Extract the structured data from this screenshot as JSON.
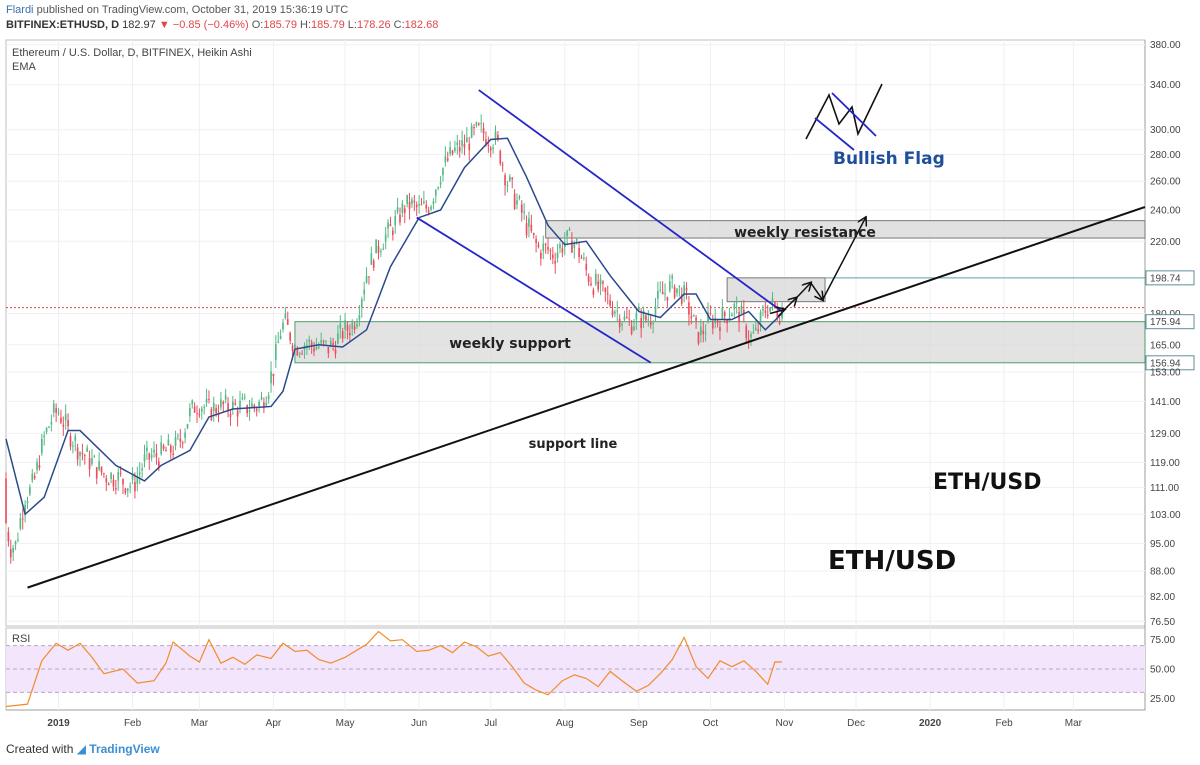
{
  "header": {
    "author": "Flardi",
    "published": "published on TradingView.com, October 31, 2019 15:36:19 UTC",
    "symbol": "BITFINEX:ETHUSD, D",
    "last": "182.97",
    "change": "−0.85 (−0.46%)",
    "o_label": "O:",
    "o_val": "185.79",
    "h_label": "H:",
    "h_val": "185.79",
    "l_label": "L:",
    "l_val": "178.26",
    "c_label": "C:",
    "c_val": "182.68"
  },
  "instrument": {
    "title": "Ethereum / U.S. Dollar, D, BITFINEX, Heikin Ashi",
    "indicator": "EMA"
  },
  "rsi_label": "RSI",
  "annotations": {
    "bullish_flag": "Bullish Flag",
    "weekly_resistance": "weekly resistance",
    "weekly_support": "weekly support",
    "support_line": "support line",
    "ethusd_1": "ETH/USD",
    "ethusd_2": "ETH/USD"
  },
  "footer": {
    "created_with": "Created with",
    "brand": "TradingView"
  },
  "colors": {
    "up": "#53b987",
    "down": "#eb4d5c",
    "ema": "#2b4a8c",
    "channel": "#2626c8",
    "trend": "#111111",
    "rsi": "#f28c28",
    "rsi_band": "#f3e5fb",
    "zone": "#d9d9d9",
    "price_line": "#e0474c"
  },
  "chart_data": [
    {
      "type": "candlestick",
      "title": "Ethereum / U.S. Dollar, D, BITFINEX, Heikin Ashi",
      "yscale": "log",
      "ylim": [
        75.5,
        385
      ],
      "y_ticks": [
        "380.00",
        "340.00",
        "300.00",
        "280.00",
        "260.00",
        "240.00",
        "220.00",
        "198.74",
        "180.00",
        "175.94",
        "165.00",
        "156.94",
        "153.00",
        "141.00",
        "129.00",
        "119.00",
        "111.00",
        "103.00",
        "95.00",
        "88.00",
        "82.00",
        "76.50"
      ],
      "x_ticks": [
        "2019",
        "Feb",
        "Mar",
        "Apr",
        "May",
        "Jun",
        "Jul",
        "Aug",
        "Sep",
        "Oct",
        "Nov",
        "Dec",
        "2020",
        "Feb",
        "Mar"
      ],
      "x_range": [
        "2018-12-10",
        "2020-03-31"
      ],
      "price_level": 182.97,
      "series": [
        {
          "name": "EMA",
          "kind": "line",
          "points": [
            [
              "2018-12-10",
              127
            ],
            [
              "2018-12-18",
              103
            ],
            [
              "2018-12-26",
              108
            ],
            [
              "2019-01-05",
              130
            ],
            [
              "2019-01-10",
              130
            ],
            [
              "2019-01-25",
              118
            ],
            [
              "2019-02-06",
              113
            ],
            [
              "2019-02-13",
              118
            ],
            [
              "2019-02-25",
              123
            ],
            [
              "2019-03-05",
              135
            ],
            [
              "2019-03-15",
              138
            ],
            [
              "2019-03-31",
              139
            ],
            [
              "2019-04-05",
              145
            ],
            [
              "2019-04-10",
              163
            ],
            [
              "2019-04-20",
              165
            ],
            [
              "2019-04-30",
              164
            ],
            [
              "2019-05-10",
              172
            ],
            [
              "2019-05-20",
              205
            ],
            [
              "2019-06-01",
              235
            ],
            [
              "2019-06-10",
              240
            ],
            [
              "2019-06-20",
              270
            ],
            [
              "2019-07-01",
              292
            ],
            [
              "2019-07-08",
              293
            ],
            [
              "2019-07-16",
              263
            ],
            [
              "2019-07-25",
              230
            ],
            [
              "2019-08-01",
              218
            ],
            [
              "2019-08-10",
              220
            ],
            [
              "2019-08-20",
              200
            ],
            [
              "2019-09-01",
              181
            ],
            [
              "2019-09-10",
              178
            ],
            [
              "2019-09-20",
              190
            ],
            [
              "2019-09-25",
              190
            ],
            [
              "2019-10-01",
              177
            ],
            [
              "2019-10-10",
              177
            ],
            [
              "2019-10-17",
              181
            ],
            [
              "2019-10-24",
              172
            ],
            [
              "2019-10-31",
              180
            ]
          ]
        },
        {
          "name": "RSI",
          "kind": "line",
          "ylim": [
            15,
            85
          ],
          "bands": [
            30,
            70
          ],
          "points": [
            [
              "2018-12-10",
              18
            ],
            [
              "2018-12-19",
              20
            ],
            [
              "2018-12-25",
              57
            ],
            [
              "2018-12-31",
              72
            ],
            [
              "2019-01-05",
              66
            ],
            [
              "2019-01-10",
              72
            ],
            [
              "2019-01-15",
              60
            ],
            [
              "2019-01-20",
              46
            ],
            [
              "2019-01-28",
              50
            ],
            [
              "2019-02-03",
              38
            ],
            [
              "2019-02-10",
              40
            ],
            [
              "2019-02-15",
              55
            ],
            [
              "2019-02-18",
              73
            ],
            [
              "2019-02-25",
              61
            ],
            [
              "2019-03-01",
              56
            ],
            [
              "2019-03-05",
              75
            ],
            [
              "2019-03-10",
              55
            ],
            [
              "2019-03-15",
              60
            ],
            [
              "2019-03-20",
              54
            ],
            [
              "2019-03-25",
              62
            ],
            [
              "2019-03-31",
              59
            ],
            [
              "2019-04-05",
              72
            ],
            [
              "2019-04-10",
              65
            ],
            [
              "2019-04-15",
              66
            ],
            [
              "2019-04-20",
              58
            ],
            [
              "2019-04-25",
              55
            ],
            [
              "2019-05-01",
              60
            ],
            [
              "2019-05-10",
              71
            ],
            [
              "2019-05-15",
              82
            ],
            [
              "2019-05-20",
              74
            ],
            [
              "2019-05-25",
              75
            ],
            [
              "2019-05-31",
              65
            ],
            [
              "2019-06-05",
              66
            ],
            [
              "2019-06-10",
              70
            ],
            [
              "2019-06-15",
              64
            ],
            [
              "2019-06-20",
              73
            ],
            [
              "2019-06-25",
              69
            ],
            [
              "2019-06-30",
              61
            ],
            [
              "2019-07-05",
              64
            ],
            [
              "2019-07-10",
              52
            ],
            [
              "2019-07-15",
              38
            ],
            [
              "2019-07-20",
              32
            ],
            [
              "2019-07-25",
              28
            ],
            [
              "2019-07-31",
              40
            ],
            [
              "2019-08-05",
              45
            ],
            [
              "2019-08-10",
              42
            ],
            [
              "2019-08-15",
              35
            ],
            [
              "2019-08-20",
              48
            ],
            [
              "2019-08-25",
              40
            ],
            [
              "2019-08-31",
              31
            ],
            [
              "2019-09-05",
              36
            ],
            [
              "2019-09-10",
              46
            ],
            [
              "2019-09-15",
              58
            ],
            [
              "2019-09-20",
              77
            ],
            [
              "2019-09-25",
              52
            ],
            [
              "2019-09-30",
              42
            ],
            [
              "2019-10-05",
              57
            ],
            [
              "2019-10-10",
              52
            ],
            [
              "2019-10-15",
              57
            ],
            [
              "2019-10-20",
              48
            ],
            [
              "2019-10-25",
              37
            ],
            [
              "2019-10-28",
              56
            ],
            [
              "2019-10-31",
              56
            ]
          ]
        }
      ],
      "levels": [
        {
          "name": "weekly resistance",
          "from": 222,
          "to": 233
        },
        {
          "name": "weekly support",
          "from": 156.94,
          "to": 175.94
        },
        {
          "name": "flag target box",
          "from": 186,
          "to": 198.74
        }
      ],
      "trendlines": [
        {
          "name": "support line",
          "from": [
            "2018-12-19",
            84
          ],
          "to": [
            "2020-03-31",
            242
          ]
        },
        {
          "name": "channel upper",
          "from": [
            "2019-06-26",
            335
          ],
          "to": [
            "2019-10-31",
            181
          ]
        },
        {
          "name": "channel lower",
          "from": [
            "2019-05-31",
            235
          ],
          "to": [
            "2019-09-06",
            157
          ]
        }
      ],
      "projection": [
        [
          "2019-10-26",
          180
        ],
        [
          "2019-11-01",
          182
        ],
        [
          "2019-11-06",
          188
        ],
        [
          "2019-11-12",
          196
        ],
        [
          "2019-11-17",
          187
        ],
        [
          "2019-12-05",
          235
        ]
      ]
    }
  ]
}
